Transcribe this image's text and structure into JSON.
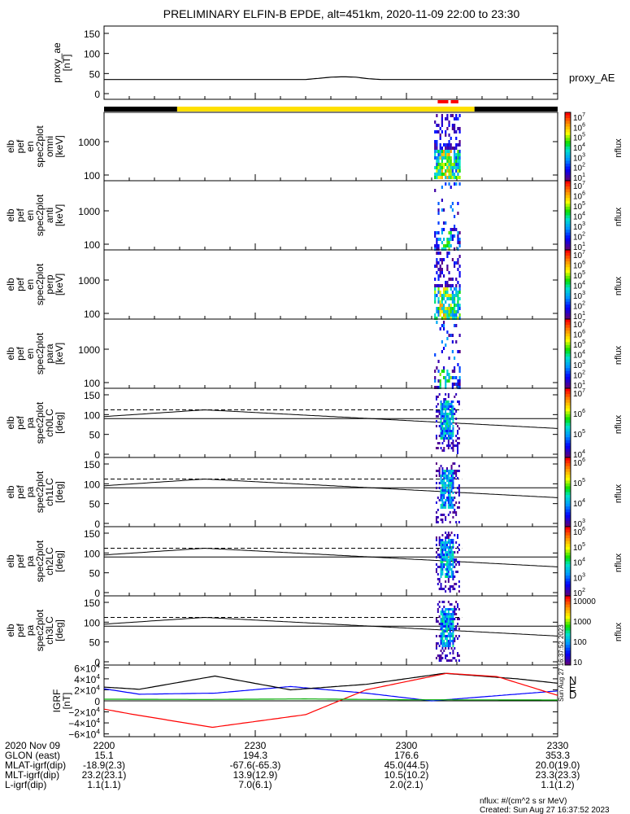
{
  "title": "PRELIMINARY ELFIN-B EPDE, alt=451km, 2020-11-09 22:00 to 23:30",
  "colors": {
    "line": "#000000",
    "igrf_n": "#0000ff",
    "igrf_e": "#000000",
    "igrf_d": "#ff0000",
    "igrf_green": "#00aa00",
    "status_yellow": "#ffe000",
    "status_black": "#000000",
    "status_red": "#ff0000"
  },
  "panels": [
    {
      "label_lines": [
        "proxy_ae",
        "[nT]"
      ],
      "right_label": "proxy_AE",
      "ticks": [
        "150",
        "100",
        "50",
        "0"
      ]
    },
    {
      "label_lines": [
        "elb",
        "pef",
        "en",
        "spec2plot",
        "omni",
        "[keV]"
      ],
      "ticks": [
        "1000",
        "100"
      ],
      "cbar_title": "nflux",
      "cbar_ticks": [
        "10^7",
        "10^6",
        "10^5",
        "10^4",
        "10^3",
        "10^2",
        "10^1"
      ]
    },
    {
      "label_lines": [
        "elb",
        "pef",
        "en",
        "spec2plot",
        "anti",
        "[keV]"
      ],
      "ticks": [
        "1000",
        "100"
      ],
      "cbar_title": "nflux",
      "cbar_ticks": [
        "10^7",
        "10^6",
        "10^5",
        "10^4",
        "10^3",
        "10^2",
        "10^1"
      ]
    },
    {
      "label_lines": [
        "elb",
        "pef",
        "en",
        "spec2plot",
        "perp",
        "[keV]"
      ],
      "ticks": [
        "1000",
        "100"
      ],
      "cbar_title": "nflux",
      "cbar_ticks": [
        "10^7",
        "10^6",
        "10^5",
        "10^4",
        "10^3",
        "10^2",
        "10^1"
      ]
    },
    {
      "label_lines": [
        "elb",
        "pef",
        "en",
        "spec2plot",
        "para",
        "[keV]"
      ],
      "ticks": [
        "1000",
        "100"
      ],
      "cbar_title": "nflux",
      "cbar_ticks": [
        "10^7",
        "10^6",
        "10^5",
        "10^4",
        "10^3",
        "10^2",
        "10^1"
      ]
    },
    {
      "label_lines": [
        "elb",
        "pef",
        "pa",
        "spec2plot",
        "ch0LC",
        "[deg]"
      ],
      "ticks": [
        "150",
        "100",
        "50",
        "0"
      ],
      "cbar_title": "nflux",
      "cbar_ticks": [
        "10^7",
        "10^6",
        "10^5",
        "10^4"
      ]
    },
    {
      "label_lines": [
        "elb",
        "pef",
        "pa",
        "spec2plot",
        "ch1LC",
        "[deg]"
      ],
      "ticks": [
        "150",
        "100",
        "50",
        "0"
      ],
      "cbar_title": "nflux",
      "cbar_ticks": [
        "10^6",
        "10^5",
        "10^4",
        "10^3"
      ]
    },
    {
      "label_lines": [
        "elb",
        "pef",
        "pa",
        "spec2plot",
        "ch2LC",
        "[deg]"
      ],
      "ticks": [
        "150",
        "100",
        "50",
        "0"
      ],
      "cbar_title": "nflux",
      "cbar_ticks": [
        "10^6",
        "10^5",
        "10^4",
        "10^3",
        "10^2"
      ]
    },
    {
      "label_lines": [
        "elb",
        "pef",
        "pa",
        "spec2plot",
        "ch3LC",
        "[deg]"
      ],
      "ticks": [
        "150",
        "100",
        "50",
        "0"
      ],
      "cbar_title": "nflux",
      "cbar_ticks": [
        "10000",
        "1000",
        "100",
        "10"
      ]
    },
    {
      "label_lines": [
        "IGRF",
        "[nT]"
      ],
      "ticks": [
        "6×10^4",
        "4×10^4",
        "2×10^4",
        "0",
        "−2×10^4",
        "−4×10^4",
        "−6×10^4"
      ],
      "legend": [
        "N",
        "E",
        "D"
      ]
    }
  ],
  "side_stamp": "Sun Aug 27 16:37:52 2023",
  "footer": {
    "rows": [
      {
        "label": "2020 Nov 09",
        "values": [
          "2200",
          "2230",
          "2300",
          "2330"
        ]
      },
      {
        "label": "GLON (east)",
        "values": [
          "15.1",
          "194.3",
          "176.6",
          "353.3"
        ]
      },
      {
        "label": "MLAT-igrf(dip)",
        "values": [
          "-18.9(2.3)",
          "-67.6(-65.3)",
          "45.0(44.5)",
          "20.0(19.0)"
        ]
      },
      {
        "label": "MLT-igrf(dip)",
        "values": [
          "23.2(23.1)",
          "13.9(12.9)",
          "10.5(10.2)",
          "23.3(23.3)"
        ]
      },
      {
        "label": "L-igrf(dip)",
        "values": [
          "1.1(1.1)",
          "7.0(6.1)",
          "2.0(2.1)",
          "1.1(1.2)"
        ]
      }
    ],
    "units_note": "nflux: #/(cm^2 s sr MeV)",
    "created": "Created: Sun Aug 27 16:37:52 2023"
  },
  "chart_data": {
    "type": "line",
    "title": "PRELIMINARY ELFIN-B EPDE, alt=451km, 2020-11-09 22:00 to 23:30",
    "x_time_range": [
      "2020-11-09 22:00",
      "2020-11-09 23:30"
    ],
    "x_tick_labels": [
      "2200",
      "2230",
      "2300",
      "2330"
    ],
    "status_bar": [
      {
        "from_min": 0,
        "to_min": 14.5,
        "state": "black"
      },
      {
        "from_min": 14.5,
        "to_min": 73.5,
        "state": "yellow"
      },
      {
        "from_min": 73.5,
        "to_min": 90,
        "state": "black"
      },
      {
        "from_min": 66.2,
        "to_min": 68.3,
        "state": "red"
      },
      {
        "from_min": 68.8,
        "to_min": 70.3,
        "state": "red"
      }
    ],
    "proxy_ae": {
      "ylim": [
        0,
        160
      ],
      "t_min": [
        0,
        40,
        42.5,
        45,
        47.5,
        50,
        52.5,
        55,
        90
      ],
      "values": [
        35,
        35,
        38,
        41,
        42,
        41,
        37,
        35,
        35
      ]
    },
    "energy_spectrograms": {
      "y_scale": "log",
      "ylim_keV": [
        63,
        7000
      ],
      "colorbar_scale": "log",
      "colorbar_range": [
        10,
        10000000
      ],
      "active_interval_min": [
        65.5,
        70.5
      ]
    },
    "pitch_angle_spectrograms": {
      "ylim_deg": [
        0,
        180
      ],
      "solid_line": {
        "t_min": [
          0,
          20,
          90
        ],
        "values": [
          95,
          112,
          65
        ]
      },
      "dashed_line_deg": 112,
      "dashed_line_end_min": 71,
      "horizontal_line_deg": 90
    },
    "igrf": {
      "ylim": [
        -65000,
        65000
      ],
      "series": [
        {
          "name": "N",
          "t_min": [
            0,
            7,
            22,
            37,
            52,
            65,
            90
          ],
          "values": [
            22000,
            12000,
            14000,
            26000,
            14000,
            0,
            18000
          ]
        },
        {
          "name": "E",
          "t_min": [
            0,
            7,
            22,
            37,
            52,
            67.5,
            82,
            90
          ],
          "values": [
            25000,
            21000,
            45000,
            20000,
            30000,
            50000,
            40000,
            32000
          ]
        },
        {
          "name": "D",
          "t_min": [
            0,
            6,
            21.5,
            40,
            52,
            68,
            78,
            90
          ],
          "values": [
            -15000,
            -25000,
            -48000,
            -25000,
            20000,
            50000,
            44000,
            10000
          ]
        },
        {
          "name": "",
          "t_min": [
            0,
            20,
            40,
            60,
            90
          ],
          "values": [
            3000,
            2500,
            3500,
            2000,
            1500
          ]
        }
      ]
    }
  }
}
